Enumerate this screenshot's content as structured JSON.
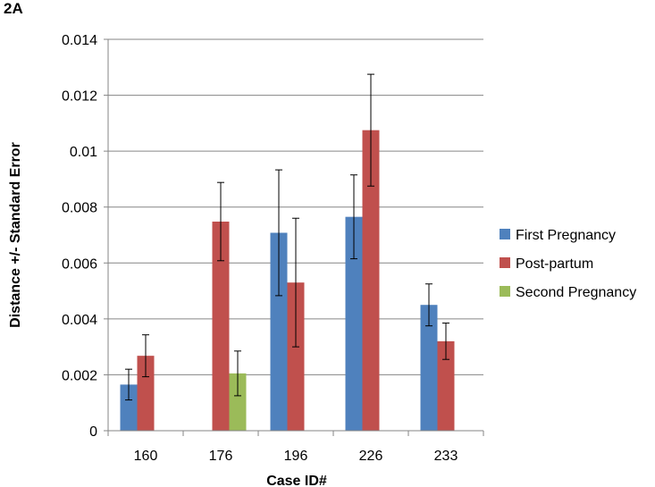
{
  "panel_label": "2A",
  "chart_data": {
    "type": "bar",
    "title": "",
    "xlabel": "Case ID#",
    "ylabel": "Distance +/- Standard Error",
    "ylim": [
      0,
      0.014
    ],
    "yticks": [
      0,
      0.002,
      0.004,
      0.006,
      0.008,
      0.01,
      0.012,
      0.014
    ],
    "ytick_labels": [
      "0",
      "0.002",
      "0.004",
      "0.006",
      "0.008",
      "0.01",
      "0.012",
      "0.014"
    ],
    "grid": "horizontal",
    "legend_position": "right",
    "categories": [
      "160",
      "176",
      "196",
      "226",
      "233"
    ],
    "series": [
      {
        "name": "First Pregnancy",
        "color": "#4F81BD",
        "values": [
          0.00165,
          null,
          0.00708,
          0.00765,
          0.0045
        ],
        "errors": [
          0.00055,
          null,
          0.00225,
          0.0015,
          0.00075
        ]
      },
      {
        "name": "Post-partum",
        "color": "#C0504D",
        "values": [
          0.00268,
          0.00748,
          0.0053,
          0.01075,
          0.0032
        ],
        "errors": [
          0.00075,
          0.0014,
          0.0023,
          0.002,
          0.00065
        ]
      },
      {
        "name": "Second Pregnancy",
        "color": "#9BBB59",
        "values": [
          null,
          0.00205,
          null,
          null,
          null
        ],
        "errors": [
          null,
          0.0008,
          null,
          null,
          null
        ]
      }
    ]
  }
}
